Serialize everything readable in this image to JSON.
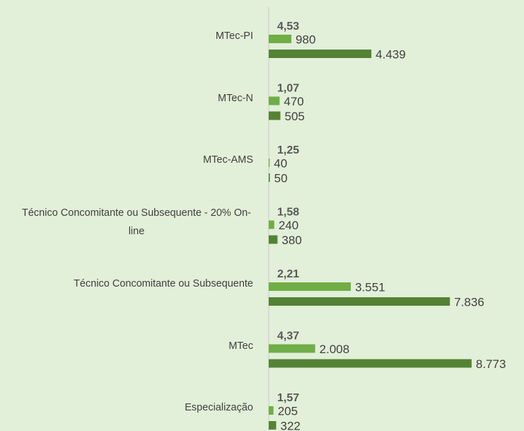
{
  "chart_data": {
    "type": "bar",
    "orientation": "horizontal",
    "categories": [
      "MTec-PI",
      "MTec-N",
      "MTec-AMS",
      "Técnico Concomitante ou Subsequente - 20% On-line",
      "Técnico Concomitante ou Subsequente",
      "MTec",
      "Especialização"
    ],
    "ratios": [
      4.53,
      1.07,
      1.25,
      1.58,
      2.21,
      4.37,
      1.57
    ],
    "ratio_labels": [
      "4,53",
      "1,07",
      "1,25",
      "1,58",
      "2,21",
      "4,37",
      "1,57"
    ],
    "series": [
      {
        "color": "#70ad47",
        "values": [
          980,
          470,
          40,
          240,
          3551,
          2008,
          205
        ],
        "value_labels": [
          "980",
          "470",
          "40",
          "240",
          "3.551",
          "2.008",
          "205"
        ]
      },
      {
        "color": "#548235",
        "values": [
          4439,
          505,
          50,
          380,
          7836,
          8773,
          322
        ],
        "value_labels": [
          "4.439",
          "505",
          "50",
          "380",
          "7.836",
          "8.773",
          "322"
        ]
      }
    ],
    "xlim": [
      0,
      10000
    ]
  }
}
